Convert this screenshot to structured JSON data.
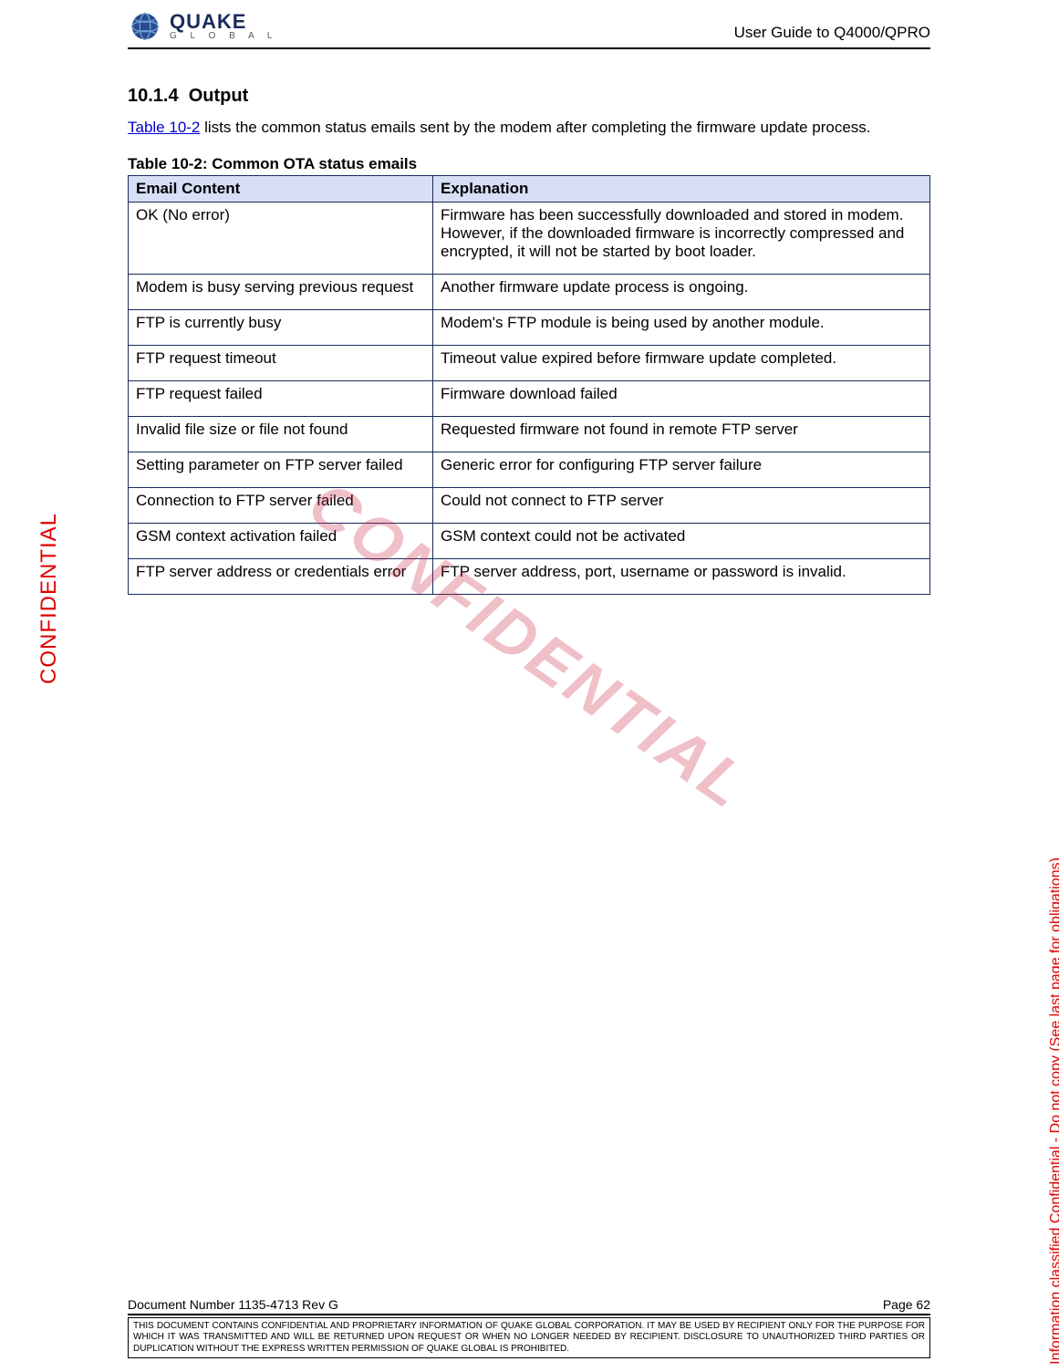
{
  "header": {
    "logo_main": "QUAKE",
    "logo_sub": "G L O B A L",
    "doc_title": "User Guide to Q4000/QPRO"
  },
  "section": {
    "number": "10.1.4",
    "title": "Output",
    "ref_link": "Table 10-2",
    "intro_rest": " lists the common status emails sent by the modem after completing the firmware update process.",
    "table_caption": "Table 10-2:  Common OTA status emails"
  },
  "table": {
    "header_col1": "Email Content",
    "header_col2": "Explanation",
    "header_bg": "#d6dff5",
    "border_color": "#1a2a5c",
    "rows": [
      {
        "c1": "OK (No error)",
        "c2": "Firmware has been successfully downloaded and stored in modem.  However, if the downloaded firmware is incorrectly compressed and encrypted, it will not be started by boot loader."
      },
      {
        "c1": "Modem is busy serving previous request",
        "c2": "Another firmware update process is ongoing."
      },
      {
        "c1": "FTP is currently busy",
        "c2": "Modem's FTP module is being used by another module."
      },
      {
        "c1": "FTP request timeout",
        "c2": "Timeout value expired before firmware update completed."
      },
      {
        "c1": "FTP request failed",
        "c2": "Firmware download failed"
      },
      {
        "c1": "Invalid file size or file not found",
        "c2": "Requested firmware not found in remote FTP server"
      },
      {
        "c1": "Setting parameter on FTP server failed",
        "c2": "Generic error for configuring FTP server failure"
      },
      {
        "c1": "Connection to FTP server failed",
        "c2": "Could not connect to FTP server"
      },
      {
        "c1": "GSM context activation failed",
        "c2": "GSM context could not be activated"
      },
      {
        "c1": "FTP server address or credentials error",
        "c2": "FTP server address, port, username or password is invalid."
      }
    ]
  },
  "footer": {
    "doc_number": "Document Number 1135-4713   Rev G",
    "page": "Page 62",
    "notice": "THIS DOCUMENT CONTAINS CONFIDENTIAL AND PROPRIETARY INFORMATION OF QUAKE GLOBAL CORPORATION.  IT MAY BE USED BY RECIPIENT ONLY FOR THE PURPOSE FOR WHICH IT WAS TRANSMITTED AND WILL BE RETURNED UPON REQUEST OR WHEN NO LONGER NEEDED BY RECIPIENT.  DISCLOSURE TO UNAUTHORIZED THIRD PARTIES OR DUPLICATION WITHOUT THE EXPRESS WRITTEN PERMISSION OF QUAKE GLOBAL IS PROHIBITED."
  },
  "stamps": {
    "left": "CONFIDENTIAL",
    "right": "Information classified Confidential - Do not copy (See last page for obligations)",
    "watermark": "CONFIDENTIAL"
  },
  "colors": {
    "link": "#0000cc",
    "stamp": "#e00000",
    "logo": "#1a2a5c"
  }
}
